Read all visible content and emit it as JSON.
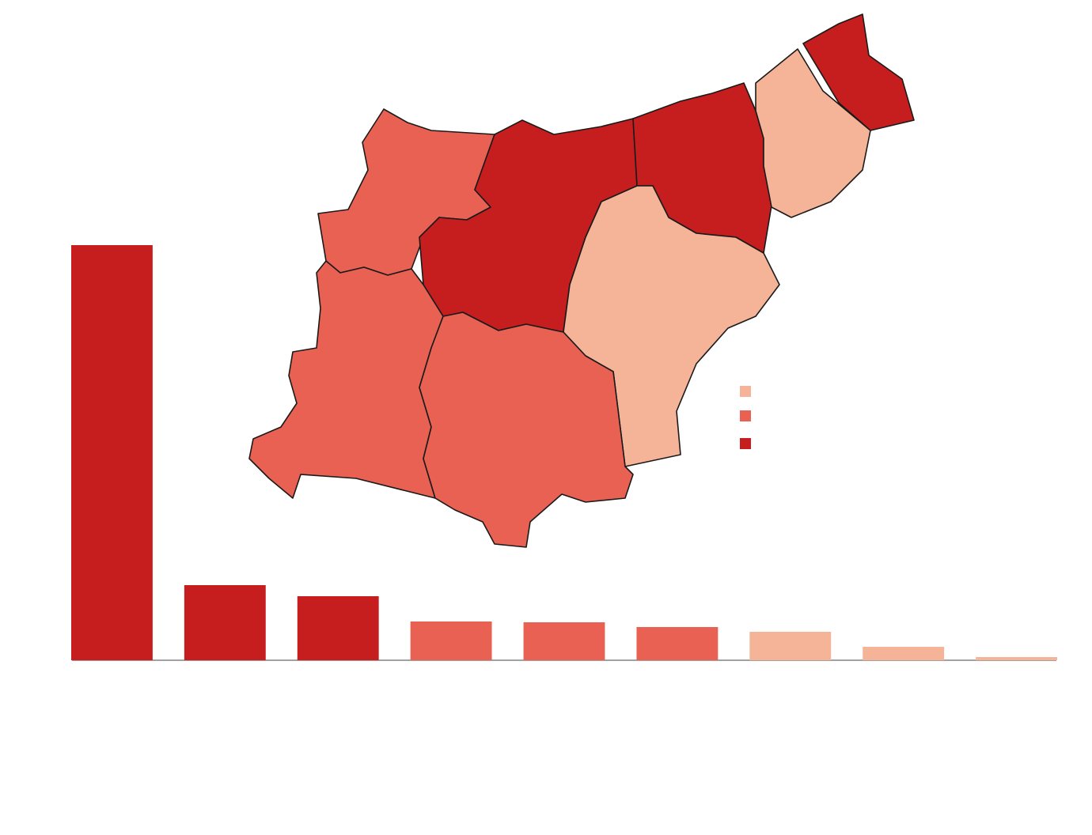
{
  "chart_data": {
    "type": "bar",
    "values": [
      525,
      95,
      81,
      49,
      48,
      42,
      36,
      17,
      4
    ],
    "colors": [
      "#c61e1e",
      "#c61e1e",
      "#c61e1e",
      "#e96153",
      "#e96153",
      "#e96153",
      "#f5b498",
      "#f5b498",
      "#f5b498"
    ],
    "ylim": [
      0,
      600
    ],
    "legend_colors": [
      "#f5b498",
      "#e96153",
      "#c61e1e"
    ]
  }
}
